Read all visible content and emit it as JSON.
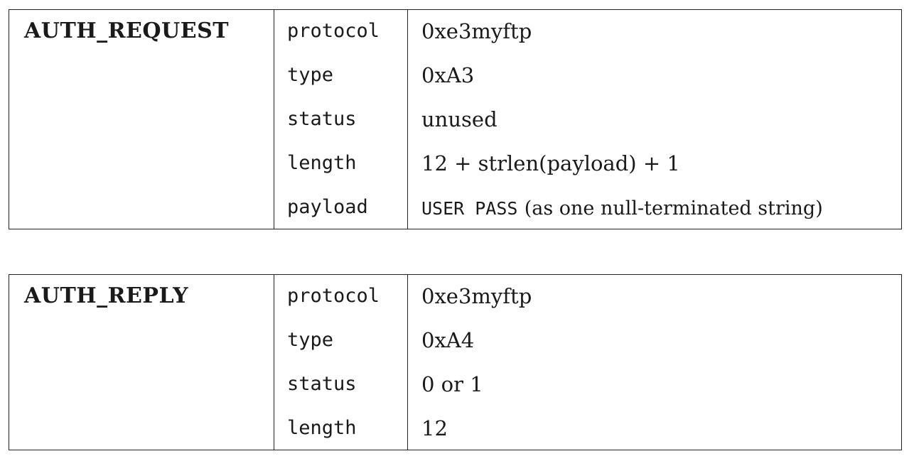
{
  "tables": [
    {
      "name": "AUTH_REQUEST",
      "rows": [
        {
          "field": "protocol",
          "value": "0xe3myftp"
        },
        {
          "field": "type",
          "value": "0xA3"
        },
        {
          "field": "status",
          "value": "unused"
        },
        {
          "field": "length",
          "value": "12 + strlen(payload) + 1"
        },
        {
          "field": "payload",
          "value_code": "USER PASS",
          "value_note": "(as one null-terminated string)"
        }
      ]
    },
    {
      "name": "AUTH_REPLY",
      "rows": [
        {
          "field": "protocol",
          "value": "0xe3myftp"
        },
        {
          "field": "type",
          "value": "0xA4"
        },
        {
          "field": "status",
          "value": "0 or 1"
        },
        {
          "field": "length",
          "value": "12"
        }
      ]
    }
  ]
}
